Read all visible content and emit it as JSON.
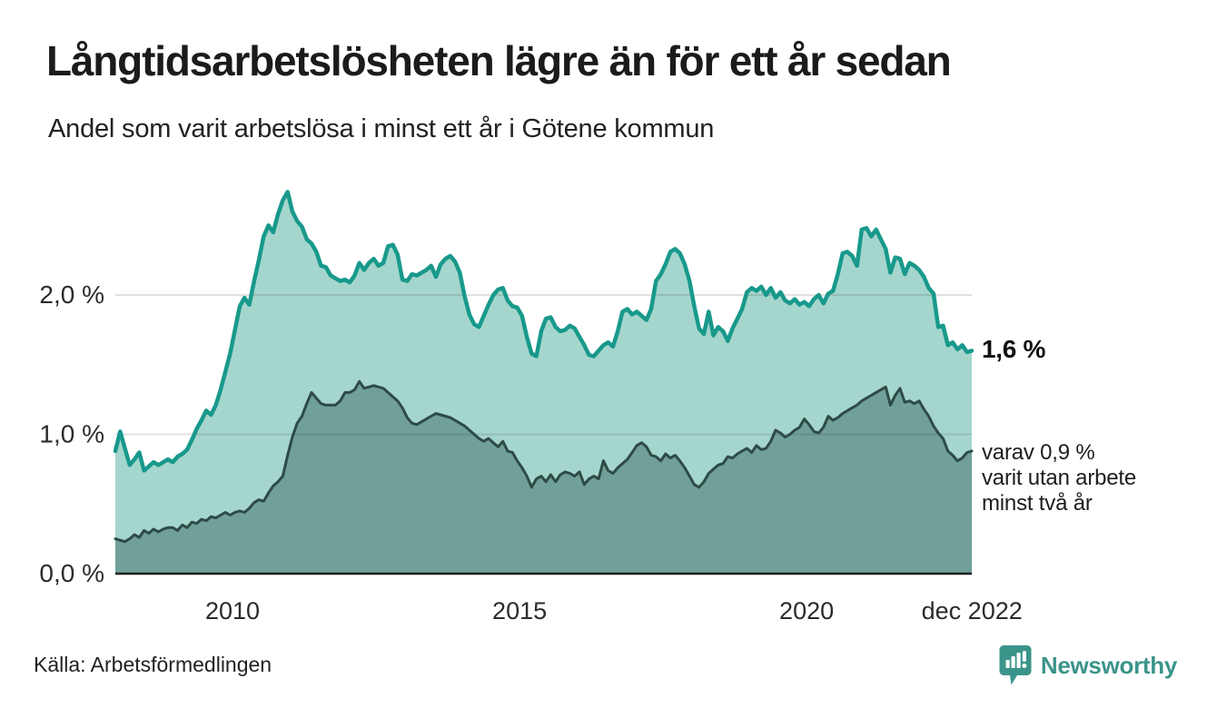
{
  "header": {
    "title": "Långtidsarbetslösheten lägre än för ett år sedan",
    "subtitle": "Andel som varit arbetslösa i minst ett år i Götene kommun"
  },
  "annotations": {
    "total_end_label": "1,6 %",
    "subset_end_label": "varav 0,9 %\nvarit utan arbete\nminst två år"
  },
  "footer": {
    "source": "Källa: Arbetsförmedlingen",
    "brand": "Newsworthy"
  },
  "colors": {
    "total_line": "#18998b",
    "total_fill": "#a5d6cd",
    "subset_line": "#2e4b46",
    "subset_fill": "#70a099",
    "gridline": "rgba(40,40,40,0.14)",
    "baseline": "#1f1f1f",
    "tick_text": "#2b2b2b",
    "brand_teal": "#3b948a"
  },
  "chart_data": {
    "type": "area",
    "title": "Långtidsarbetslösheten lägre än för ett år sedan",
    "subtitle": "Andel som varit arbetslösa i minst ett år i Götene kommun",
    "unit": "%",
    "x_start_year": 2008,
    "x_end_label": "dec 2022",
    "ylim": [
      0,
      2.9
    ],
    "grid": true,
    "yticks": [
      {
        "value": 0,
        "label": "0,0 %"
      },
      {
        "value": 1,
        "label": "1,0 %"
      },
      {
        "value": 2,
        "label": "2,0 %"
      }
    ],
    "xticks": [
      {
        "t": 2010.04,
        "label": "2010"
      },
      {
        "t": 2015.04,
        "label": "2015"
      },
      {
        "t": 2020.04,
        "label": "2020"
      },
      {
        "t": 2022.92,
        "label": "dec 2022"
      }
    ],
    "series": [
      {
        "name": "Andel arbetslösa minst ett år",
        "end_value": 1.6,
        "end_label": "1,6 %",
        "values": [
          0.88,
          1.02,
          0.9,
          0.78,
          0.82,
          0.87,
          0.74,
          0.77,
          0.8,
          0.78,
          0.8,
          0.82,
          0.8,
          0.84,
          0.86,
          0.89,
          0.96,
          1.04,
          1.1,
          1.17,
          1.14,
          1.21,
          1.32,
          1.45,
          1.58,
          1.75,
          1.92,
          1.98,
          1.93,
          2.1,
          2.25,
          2.42,
          2.5,
          2.45,
          2.58,
          2.68,
          2.74,
          2.6,
          2.53,
          2.49,
          2.4,
          2.37,
          2.31,
          2.21,
          2.2,
          2.14,
          2.12,
          2.1,
          2.11,
          2.09,
          2.14,
          2.23,
          2.18,
          2.23,
          2.26,
          2.21,
          2.23,
          2.35,
          2.36,
          2.29,
          2.11,
          2.1,
          2.15,
          2.14,
          2.16,
          2.18,
          2.21,
          2.13,
          2.22,
          2.26,
          2.28,
          2.24,
          2.16,
          1.99,
          1.86,
          1.79,
          1.77,
          1.85,
          1.93,
          2.0,
          2.04,
          2.05,
          1.96,
          1.92,
          1.91,
          1.85,
          1.7,
          1.58,
          1.56,
          1.74,
          1.83,
          1.84,
          1.77,
          1.74,
          1.75,
          1.78,
          1.76,
          1.7,
          1.64,
          1.57,
          1.56,
          1.6,
          1.64,
          1.66,
          1.63,
          1.74,
          1.88,
          1.9,
          1.86,
          1.88,
          1.85,
          1.82,
          1.9,
          2.1,
          2.15,
          2.22,
          2.31,
          2.33,
          2.3,
          2.22,
          2.1,
          1.92,
          1.76,
          1.72,
          1.88,
          1.71,
          1.77,
          1.74,
          1.67,
          1.76,
          1.83,
          1.9,
          2.02,
          2.05,
          2.03,
          2.06,
          2.0,
          2.05,
          1.98,
          2.02,
          1.96,
          1.94,
          1.97,
          1.93,
          1.95,
          1.92,
          1.97,
          2.0,
          1.94,
          2.01,
          2.03,
          2.15,
          2.3,
          2.31,
          2.28,
          2.21,
          2.47,
          2.48,
          2.42,
          2.47,
          2.4,
          2.33,
          2.16,
          2.27,
          2.26,
          2.15,
          2.23,
          2.21,
          2.18,
          2.13,
          2.05,
          2.01,
          1.77,
          1.78,
          1.64,
          1.66,
          1.61,
          1.64,
          1.59,
          1.6
        ]
      },
      {
        "name": "Varav utan arbete minst två år",
        "end_value": 0.9,
        "end_label": "0,9 %",
        "values": [
          0.25,
          0.24,
          0.23,
          0.25,
          0.28,
          0.26,
          0.31,
          0.29,
          0.32,
          0.3,
          0.32,
          0.33,
          0.33,
          0.31,
          0.35,
          0.33,
          0.37,
          0.36,
          0.39,
          0.38,
          0.41,
          0.4,
          0.42,
          0.44,
          0.42,
          0.44,
          0.45,
          0.44,
          0.47,
          0.51,
          0.53,
          0.52,
          0.58,
          0.63,
          0.66,
          0.7,
          0.85,
          0.98,
          1.08,
          1.13,
          1.22,
          1.3,
          1.26,
          1.22,
          1.21,
          1.21,
          1.21,
          1.24,
          1.3,
          1.3,
          1.32,
          1.38,
          1.33,
          1.34,
          1.35,
          1.34,
          1.33,
          1.3,
          1.27,
          1.24,
          1.19,
          1.12,
          1.08,
          1.07,
          1.09,
          1.11,
          1.13,
          1.15,
          1.14,
          1.13,
          1.12,
          1.1,
          1.08,
          1.06,
          1.03,
          1.0,
          0.97,
          0.95,
          0.97,
          0.94,
          0.91,
          0.95,
          0.88,
          0.87,
          0.81,
          0.76,
          0.7,
          0.62,
          0.68,
          0.7,
          0.66,
          0.71,
          0.66,
          0.71,
          0.73,
          0.72,
          0.7,
          0.73,
          0.64,
          0.68,
          0.7,
          0.68,
          0.81,
          0.74,
          0.72,
          0.76,
          0.79,
          0.82,
          0.87,
          0.92,
          0.94,
          0.91,
          0.85,
          0.84,
          0.81,
          0.86,
          0.83,
          0.85,
          0.81,
          0.76,
          0.7,
          0.64,
          0.62,
          0.66,
          0.72,
          0.75,
          0.78,
          0.79,
          0.84,
          0.83,
          0.86,
          0.88,
          0.9,
          0.87,
          0.92,
          0.89,
          0.9,
          0.95,
          1.03,
          1.01,
          0.98,
          1.0,
          1.03,
          1.05,
          1.11,
          1.07,
          1.02,
          1.01,
          1.05,
          1.13,
          1.1,
          1.12,
          1.15,
          1.17,
          1.19,
          1.21,
          1.24,
          1.26,
          1.28,
          1.3,
          1.32,
          1.34,
          1.21,
          1.28,
          1.33,
          1.23,
          1.24,
          1.22,
          1.24,
          1.18,
          1.13,
          1.06,
          1.01,
          0.97,
          0.88,
          0.85,
          0.81,
          0.83,
          0.87,
          0.88
        ]
      }
    ]
  }
}
